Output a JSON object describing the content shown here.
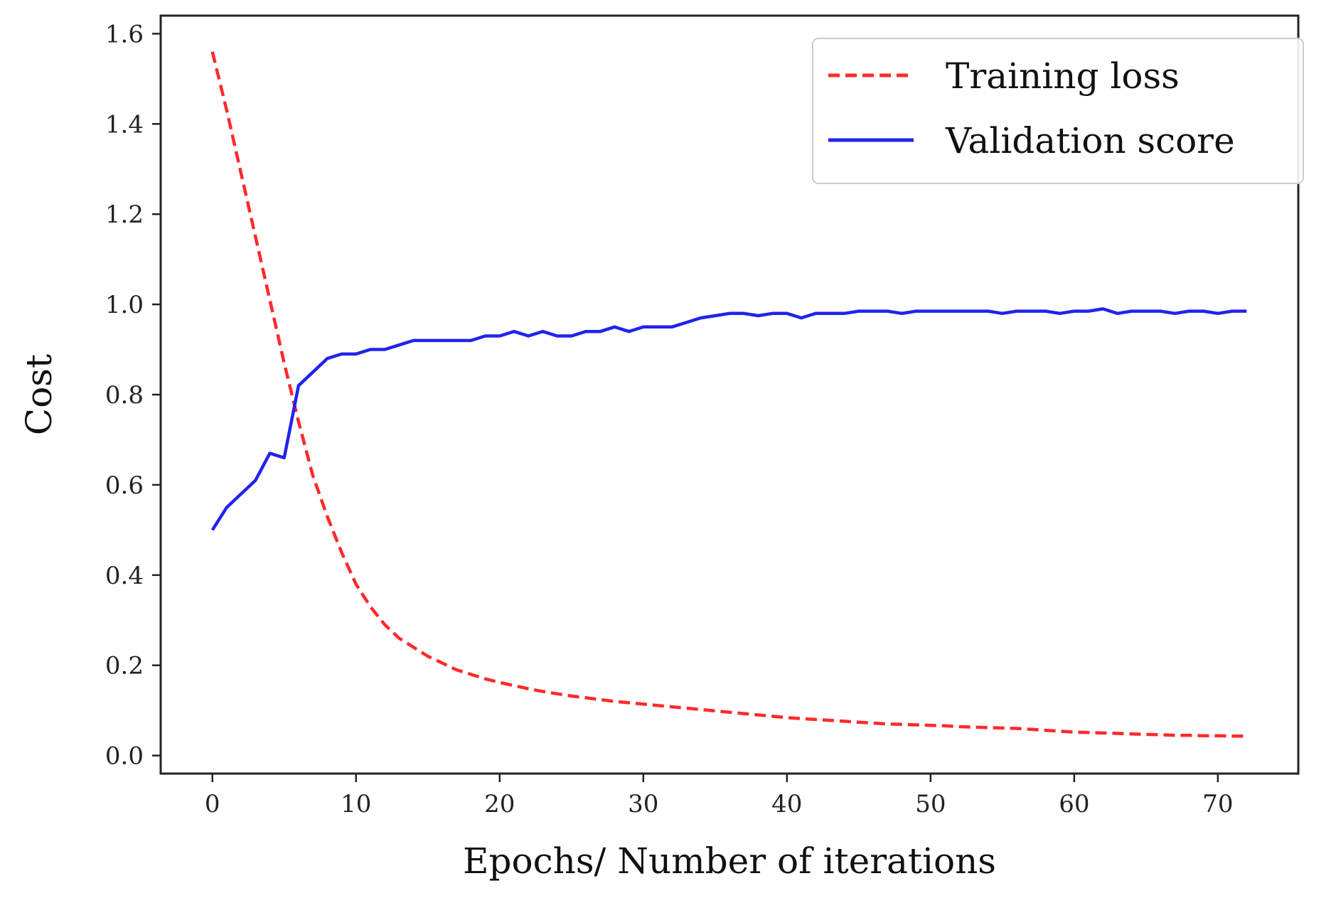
{
  "chart_data": {
    "type": "line",
    "title": "",
    "xlabel": "Epochs/ Number of iterations",
    "ylabel": "Cost",
    "xlim": [
      -3.6,
      75.6
    ],
    "ylim": [
      -0.04,
      1.64
    ],
    "x_ticks": [
      0,
      10,
      20,
      30,
      40,
      50,
      60,
      70
    ],
    "x_tick_labels": [
      "0",
      "10",
      "20",
      "30",
      "40",
      "50",
      "60",
      "70"
    ],
    "y_ticks": [
      0.0,
      0.2,
      0.4,
      0.6,
      0.8,
      1.0,
      1.2,
      1.4,
      1.6
    ],
    "y_tick_labels": [
      "0.0",
      "0.2",
      "0.4",
      "0.6",
      "0.8",
      "1.0",
      "1.2",
      "1.4",
      "1.6"
    ],
    "grid": false,
    "legend_position": "top-right",
    "x": [
      0,
      1,
      2,
      3,
      4,
      5,
      6,
      7,
      8,
      9,
      10,
      11,
      12,
      13,
      14,
      15,
      16,
      17,
      18,
      19,
      20,
      21,
      22,
      23,
      24,
      25,
      26,
      27,
      28,
      29,
      30,
      31,
      32,
      33,
      34,
      35,
      36,
      37,
      38,
      39,
      40,
      41,
      42,
      43,
      44,
      45,
      46,
      47,
      48,
      49,
      50,
      51,
      52,
      53,
      54,
      55,
      56,
      57,
      58,
      59,
      60,
      61,
      62,
      63,
      64,
      65,
      66,
      67,
      68,
      69,
      70,
      71,
      72
    ],
    "series": [
      {
        "name": "Training loss",
        "style": "dashed",
        "color": "#ff2a2a",
        "values": [
          1.56,
          1.43,
          1.29,
          1.15,
          1.01,
          0.87,
          0.74,
          0.62,
          0.53,
          0.45,
          0.38,
          0.33,
          0.29,
          0.26,
          0.24,
          0.22,
          0.205,
          0.19,
          0.18,
          0.17,
          0.162,
          0.155,
          0.148,
          0.142,
          0.137,
          0.132,
          0.128,
          0.124,
          0.12,
          0.117,
          0.114,
          0.111,
          0.108,
          0.105,
          0.102,
          0.099,
          0.096,
          0.093,
          0.09,
          0.087,
          0.084,
          0.082,
          0.08,
          0.078,
          0.076,
          0.074,
          0.072,
          0.07,
          0.069,
          0.068,
          0.067,
          0.066,
          0.064,
          0.063,
          0.062,
          0.061,
          0.06,
          0.058,
          0.056,
          0.054,
          0.052,
          0.051,
          0.05,
          0.049,
          0.048,
          0.047,
          0.046,
          0.045,
          0.045,
          0.044,
          0.044,
          0.043,
          0.043
        ]
      },
      {
        "name": "Validation score",
        "style": "solid",
        "color": "#2222ee",
        "values": [
          0.5,
          0.55,
          0.58,
          0.61,
          0.67,
          0.66,
          0.82,
          0.85,
          0.88,
          0.89,
          0.89,
          0.9,
          0.9,
          0.91,
          0.92,
          0.92,
          0.92,
          0.92,
          0.92,
          0.93,
          0.93,
          0.94,
          0.93,
          0.94,
          0.93,
          0.93,
          0.94,
          0.94,
          0.95,
          0.94,
          0.95,
          0.95,
          0.95,
          0.96,
          0.97,
          0.975,
          0.98,
          0.98,
          0.975,
          0.98,
          0.98,
          0.97,
          0.98,
          0.98,
          0.98,
          0.985,
          0.985,
          0.985,
          0.98,
          0.985,
          0.985,
          0.985,
          0.985,
          0.985,
          0.985,
          0.98,
          0.985,
          0.985,
          0.985,
          0.98,
          0.985,
          0.985,
          0.99,
          0.98,
          0.985,
          0.985,
          0.985,
          0.98,
          0.985,
          0.985,
          0.98,
          0.985,
          0.985
        ]
      }
    ]
  }
}
